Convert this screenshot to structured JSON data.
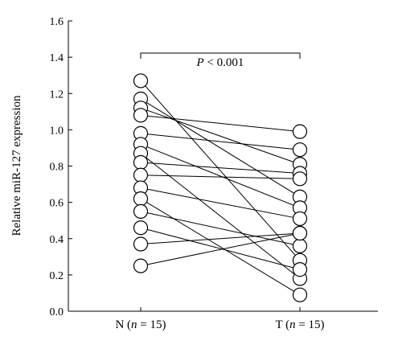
{
  "chart_data": {
    "type": "scatter",
    "ylabel": "Relative miR-127 expression",
    "xlabel": "",
    "categories": [
      {
        "letter": "N",
        "n_label": "n",
        "eq": " = 15)"
      },
      {
        "letter": "T",
        "n_label": "n",
        "eq": " = 15)"
      }
    ],
    "ylim": [
      0,
      1.6
    ],
    "yticks": [
      "0.0",
      "0.2",
      "0.4",
      "0.6",
      "0.8",
      "1.0",
      "1.2",
      "1.4",
      "1.6"
    ],
    "annotation": {
      "p_symbol": "P",
      "p_rest": " < 0.001"
    },
    "pairs": [
      {
        "N": 1.27,
        "T": 0.28
      },
      {
        "N": 1.17,
        "T": 0.63
      },
      {
        "N": 1.12,
        "T": 0.81
      },
      {
        "N": 1.08,
        "T": 0.99
      },
      {
        "N": 0.98,
        "T": 0.89
      },
      {
        "N": 0.92,
        "T": 0.57
      },
      {
        "N": 0.87,
        "T": 0.18
      },
      {
        "N": 0.82,
        "T": 0.76
      },
      {
        "N": 0.75,
        "T": 0.73
      },
      {
        "N": 0.68,
        "T": 0.51
      },
      {
        "N": 0.62,
        "T": 0.09
      },
      {
        "N": 0.55,
        "T": 0.36
      },
      {
        "N": 0.46,
        "T": 0.23
      },
      {
        "N": 0.37,
        "T": 0.43
      },
      {
        "N": 0.25,
        "T": 0.43
      }
    ],
    "marker": {
      "stroke": "#000000",
      "fill": "#ffffff"
    }
  }
}
